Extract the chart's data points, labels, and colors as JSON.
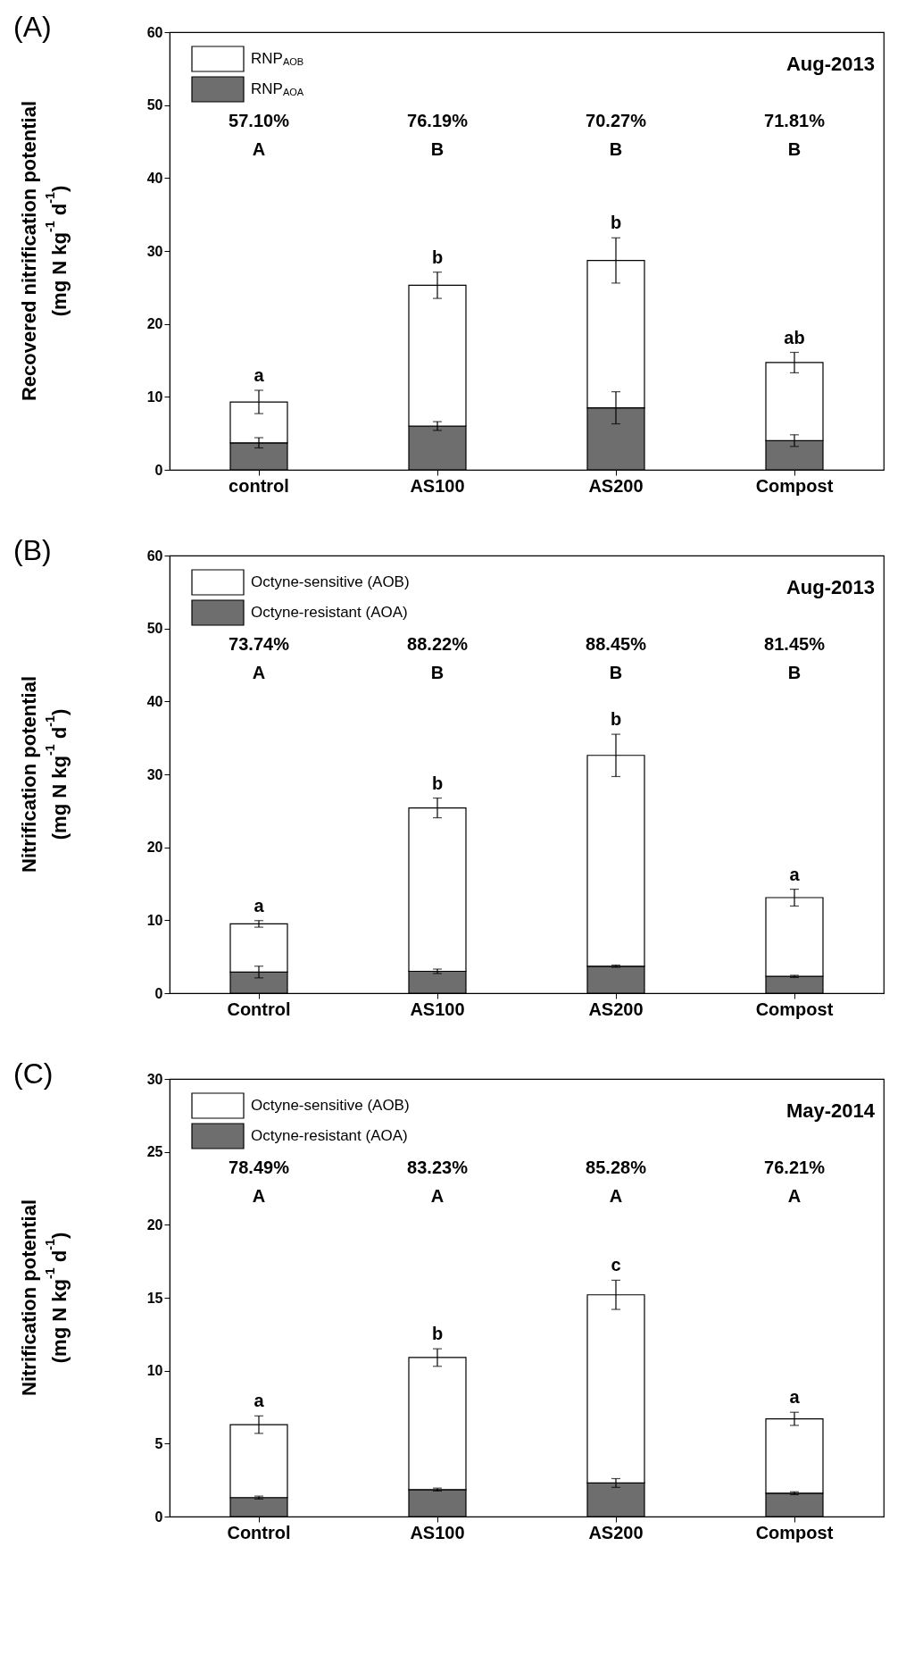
{
  "chart_data": [
    {
      "type": "bar",
      "stacked": true,
      "title": "(A)",
      "subtitle": "Aug-2013",
      "ylabel": "Recovered nitrification potential\n(mg N kg$^{-1}$ d$^{-1}$)",
      "categories": [
        "control",
        "AS100",
        "AS200",
        "Compost"
      ],
      "series": [
        {
          "name": "RNP$_{AOA}$",
          "color": "#6e6e6e",
          "values": [
            3.7,
            6.0,
            8.5,
            4.0
          ],
          "errors": [
            0.7,
            0.6,
            2.2,
            0.8
          ]
        },
        {
          "name": "RNP$_{AOB}$",
          "color": "#ffffff",
          "values": [
            5.6,
            19.3,
            20.2,
            10.7
          ],
          "errors": [
            1.6,
            1.8,
            3.1,
            1.4
          ]
        }
      ],
      "ylim": [
        0,
        60
      ],
      "yticks": [
        0,
        10,
        20,
        30,
        40,
        50,
        60
      ],
      "legend": "top left",
      "annotations": [
        "57.10%",
        "76.19%",
        "70.27%",
        "71.81%",
        "A",
        "B",
        "B",
        "B",
        {
          "text": "a",
          "x": "control",
          "y": 9.3
        },
        {
          "text": "b",
          "x": "AS100",
          "y": 25.3
        },
        {
          "text": "b",
          "x": "AS200",
          "y": 28.7
        },
        {
          "text": "ab",
          "x": "Compost",
          "y": 14.7
        }
      ]
    },
    {
      "type": "bar",
      "stacked": true,
      "title": "(B)",
      "subtitle": "Aug-2013",
      "ylabel": "Nitrification potential\n(mg N kg$^{-1}$ d$^{-1}$)",
      "categories": [
        "Control",
        "AS100",
        "AS200",
        "Compost"
      ],
      "series": [
        {
          "name": "Octyne-resistant (AOA)",
          "color": "#6e6e6e",
          "values": [
            2.9,
            3.0,
            3.7,
            2.3
          ],
          "errors": [
            0.8,
            0.3,
            0.15,
            0.15
          ]
        },
        {
          "name": "Octyne-sensitive (AOB)",
          "color": "#ffffff",
          "values": [
            6.6,
            22.4,
            28.9,
            10.8
          ],
          "errors": [
            0.45,
            1.35,
            2.9,
            1.15
          ]
        }
      ],
      "ylim": [
        0,
        60
      ],
      "yticks": [
        0,
        10,
        20,
        30,
        40,
        50,
        60
      ],
      "legend": "top left",
      "annotations": [
        "73.74%",
        "88.22%",
        "88.45%",
        "81.45%",
        "A",
        "B",
        "B",
        "B",
        {
          "text": "a",
          "x": "Control",
          "y": 9.5
        },
        {
          "text": "b",
          "x": "AS100",
          "y": 25.4
        },
        {
          "text": "b",
          "x": "AS200",
          "y": 32.6
        },
        {
          "text": "a",
          "x": "Compost",
          "y": 13.1
        }
      ]
    },
    {
      "type": "bar",
      "stacked": true,
      "title": "(C)",
      "subtitle": "May-2014",
      "ylabel": "Nitrification potential\n(mg N kg$^{-1}$ d$^{-1}$)",
      "categories": [
        "Control",
        "AS100",
        "AS200",
        "Compost"
      ],
      "series": [
        {
          "name": "Octyne-resistant (AOA)",
          "color": "#6e6e6e",
          "values": [
            1.3,
            1.85,
            2.3,
            1.6
          ],
          "errors": [
            0.1,
            0.1,
            0.3,
            0.1
          ]
        },
        {
          "name": "Octyne-sensitive (AOB)",
          "color": "#ffffff",
          "values": [
            5.0,
            9.05,
            12.9,
            5.1
          ],
          "errors": [
            0.6,
            0.6,
            1.0,
            0.45
          ]
        }
      ],
      "ylim": [
        0,
        30
      ],
      "yticks": [
        0,
        5,
        10,
        15,
        20,
        25,
        30
      ],
      "legend": "top left",
      "annotations": [
        "78.49%",
        "83.23%",
        "85.28%",
        "76.21%",
        "A",
        "A",
        "A",
        "A",
        {
          "text": "a",
          "x": "Control",
          "y": 6.3
        },
        {
          "text": "b",
          "x": "AS100",
          "y": 10.9
        },
        {
          "text": "c",
          "x": "AS200",
          "y": 15.2
        },
        {
          "text": "a",
          "x": "Compost",
          "y": 6.7
        }
      ]
    }
  ]
}
